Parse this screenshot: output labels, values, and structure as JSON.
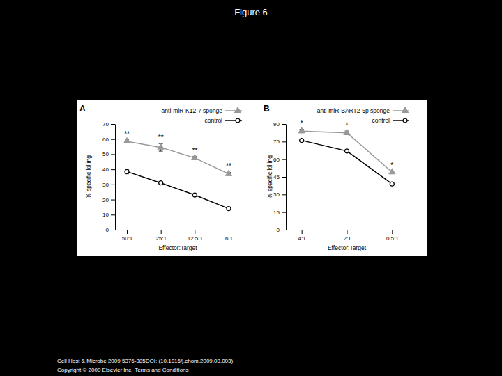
{
  "page": {
    "title": "Figure 6",
    "footer_citation": "Cell Host & Microbe 2009 5376-385DOI: (10.1016/j.chom.2009.03.003)",
    "footer_copyright": "Copyright © 2009 Elsevier Inc.",
    "footer_link": "Terms and Conditions"
  },
  "chart_data": [
    {
      "type": "line",
      "title": "A",
      "x_label": "Effector:Target",
      "y_label": "% specific killing",
      "categories": [
        "50:1",
        "25:1",
        "12.5:1",
        "6:1"
      ],
      "series": [
        {
          "name": "anti-miR-K12-7 sponge",
          "color": "#999999",
          "marker": "triangle",
          "line_style": "solid",
          "values": [
            58.5,
            54.5,
            47.5,
            37
          ],
          "errors": [
            1,
            2.5,
            1,
            1
          ]
        },
        {
          "name": "control",
          "color": "#000000",
          "marker": "circle",
          "line_style": "solid",
          "values": [
            38.5,
            31,
            23,
            14
          ],
          "errors": [
            1.5,
            1,
            0.3,
            0.3
          ]
        }
      ],
      "annotations": [
        "**",
        "**",
        "**",
        "**"
      ],
      "ylim": [
        0,
        70
      ],
      "yticks": [
        0,
        10,
        20,
        30,
        40,
        50,
        60,
        70
      ],
      "legend": "top-right",
      "grid": false
    },
    {
      "type": "line",
      "title": "B",
      "x_label": "Effector:Target",
      "y_label": "% specific killing",
      "categories": [
        "4:1",
        "2:1",
        "0.5:1"
      ],
      "series": [
        {
          "name": "anti-miR-BART2-5p sponge",
          "color": "#999999",
          "marker": "triangle",
          "line_style": "solid",
          "values": [
            84,
            82.5,
            49
          ],
          "errors": [
            1.5,
            1.5,
            1
          ]
        },
        {
          "name": "control",
          "color": "#000000",
          "marker": "circle",
          "line_style": "solid",
          "values": [
            76,
            67,
            39
          ],
          "errors": [
            1,
            1,
            1.5
          ]
        }
      ],
      "annotations": [
        "*",
        "*",
        "*"
      ],
      "ylim": [
        0,
        90
      ],
      "yticks": [
        0,
        15,
        30,
        45,
        60,
        75,
        90
      ],
      "legend": "top-right",
      "grid": false
    }
  ]
}
